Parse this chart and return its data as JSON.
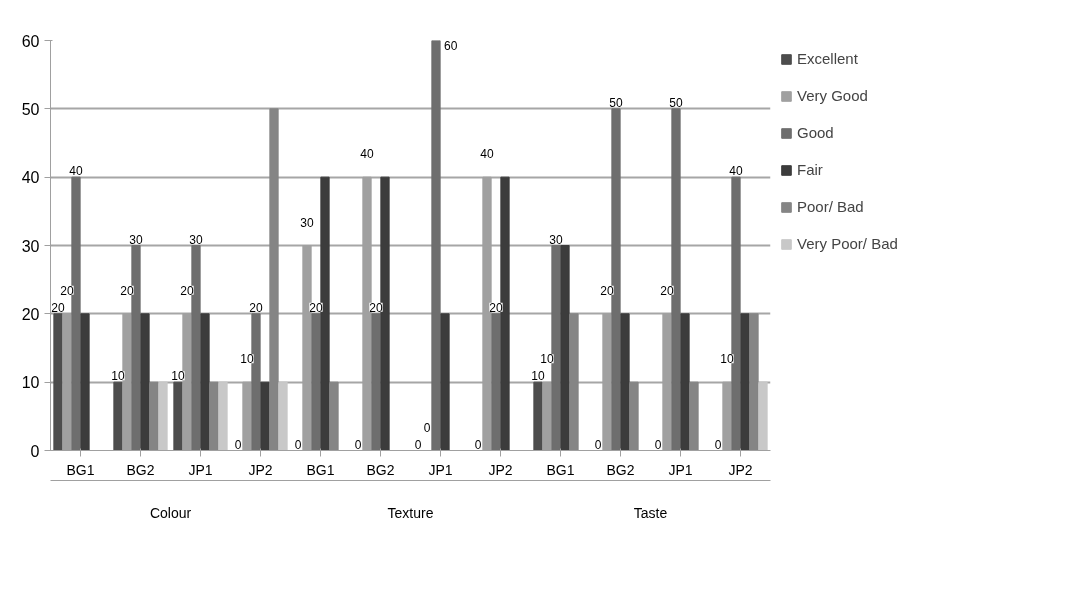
{
  "chart_data": {
    "type": "bar",
    "categories": [
      "BG1",
      "BG2",
      "JP1",
      "JP2",
      "BG1",
      "BG2",
      "JP1",
      "JP2",
      "BG1",
      "BG2",
      "JP1",
      "JP2"
    ],
    "series": [
      {
        "name": "Excellent",
        "color": "#4d4d4d",
        "values": [
          20,
          10,
          10,
          0,
          0,
          0,
          0,
          0,
          10,
          0,
          0,
          0
        ],
        "value_labels": [
          "20",
          "10",
          "10",
          "0",
          "0",
          "0",
          "0",
          "0",
          "10",
          "0",
          "0",
          "0"
        ]
      },
      {
        "name": "Very Good",
        "color": "#a0a0a0",
        "values": [
          20,
          20,
          20,
          10,
          30,
          40,
          0,
          40,
          10,
          20,
          20,
          10
        ],
        "value_labels": [
          "20",
          "20",
          "20",
          "10",
          "30",
          "40",
          "0",
          "40",
          "10",
          "20",
          "20",
          "10"
        ]
      },
      {
        "name": "Good",
        "color": "#6e6e6e",
        "values": [
          40,
          30,
          30,
          20,
          20,
          20,
          60,
          20,
          30,
          50,
          50,
          40
        ],
        "value_labels": [
          "40",
          "30",
          "30",
          "20",
          "20",
          "20",
          "60",
          "20",
          "30",
          "50",
          "50",
          "40"
        ]
      },
      {
        "name": "Fair",
        "color": "#3c3c3c",
        "values": [
          20,
          20,
          20,
          10,
          40,
          40,
          20,
          40,
          30,
          20,
          20,
          20
        ]
      },
      {
        "name": "Poor/ Bad",
        "color": "#858585",
        "values": [
          0,
          10,
          10,
          50,
          10,
          0,
          0,
          0,
          20,
          10,
          10,
          20
        ]
      },
      {
        "name": "Very Poor/ Bad",
        "color": "#c8c8c8",
        "values": [
          0,
          10,
          10,
          10,
          0,
          0,
          0,
          0,
          0,
          0,
          0,
          10
        ]
      }
    ],
    "annotations": [
      "Colour",
      "Texture",
      "Taste"
    ],
    "ylim": [
      0,
      60
    ],
    "yticks": [
      0,
      10,
      20,
      30,
      40,
      50,
      60
    ],
    "grid": "y",
    "legend": "right"
  }
}
